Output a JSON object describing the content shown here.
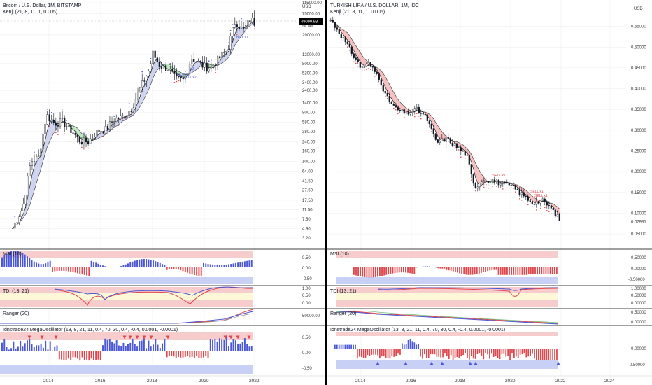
{
  "left": {
    "title": "Bitcoin / U.S. Dollar, 1M, BITSTAMP",
    "indicator": "Kenji (21, 8, 11, 1, 0.005)",
    "price_axis_labels": [
      "115000.00",
      "USD",
      "75000.00",
      "29000.00",
      "12000.00",
      "8000.00",
      "5200.00",
      "3400.00",
      "2400.00",
      "1400.00",
      "900.00",
      "580.00",
      "380.00",
      "240.00",
      "160.00",
      "100.00",
      "64.00",
      "41.50",
      "27.50",
      "17.50",
      "11.50",
      "7.50",
      "4.90",
      "3.20"
    ],
    "price_badge": "49099.68",
    "price_badge_sub": "9d 14h",
    "annotations": [
      "SELL x2",
      "BUY x2",
      "SELL x1",
      "BUY x1",
      "x2"
    ],
    "msi": {
      "label": "MSI (10)",
      "ticks": [
        "0.50",
        "0.00",
        "-0.50"
      ]
    },
    "tdi": {
      "label": "TDI (13, 21)",
      "ticks": [
        "1.00",
        "0.50",
        "0.00"
      ]
    },
    "ranger": {
      "label": "Ranger (20)",
      "ticks": [
        "50000.00"
      ]
    },
    "mega": {
      "label": "Idnstrade24 MegaOscillator (13, 8, 21, 11, 0.4, 70, 30, 0.4, -0.4, 0.0001, -0.0001)",
      "ticks": [
        "0.50",
        "0.00",
        "-0.50"
      ]
    },
    "x_ticks": [
      "2014",
      "2016",
      "2018",
      "2020",
      "2022"
    ]
  },
  "right": {
    "title": "TURKISH LIRA / U.S. DOLLAR, 1M, IDC",
    "indicator": "Kenji (21, 8, 11, 1, 0.005)",
    "price_axis_labels": [
      "USD",
      "0.55000",
      "0.50000",
      "0.45000",
      "0.40000",
      "0.35000",
      "0.30000",
      "0.25000",
      "0.20000",
      "0.15000",
      "0.10000",
      "0.07931",
      "0.05000"
    ],
    "annotations": [
      "SELL x1",
      "SELL x1",
      "SELL x1"
    ],
    "msi": {
      "label": "MSI (10)",
      "ticks": [
        "0.50000",
        "0.00000",
        "-0.50000"
      ]
    },
    "tdi": {
      "label": "TDI (13, 21)",
      "ticks": [
        "1.00000",
        "0.50000",
        "0.00000"
      ]
    },
    "ranger": {
      "label": "Ranger (20)",
      "ticks": [
        "0.50000",
        "0.00000"
      ]
    },
    "mega": {
      "label": "Idnstrade24 MegaOscillator (13, 8, 21, 11, 0.4, 70, 30, 0.4, -0.4, 0.0001, -0.0001)",
      "ticks": [
        "0.00000",
        "-0.50000"
      ]
    },
    "x_ticks": [
      "2014",
      "2016",
      "2018",
      "2020",
      "2022",
      "2024"
    ]
  },
  "colors": {
    "up": "#4a57d6",
    "down": "#e0474c",
    "bull_fill": "#b5e3b8",
    "bear_fill": "#f5b8b8",
    "cloud": "#c9cfee",
    "ob_band": "#f7cccc",
    "os_band": "#c9d0f5",
    "mid_band": "#fdf9d8",
    "grid": "#e6e6e6",
    "divider": "#000000",
    "badge": "#000000"
  },
  "chart_data": [
    {
      "type": "line",
      "title": "Bitcoin / U.S. Dollar, 1M, BITSTAMP",
      "scale": "log",
      "x": [
        2012.6,
        2013.0,
        2013.3,
        2013.6,
        2013.9,
        2014.2,
        2014.5,
        2014.9,
        2015.2,
        2015.5,
        2015.9,
        2016.2,
        2016.5,
        2016.9,
        2017.2,
        2017.5,
        2017.9,
        2018.0,
        2018.3,
        2018.6,
        2018.9,
        2019.2,
        2019.5,
        2019.9,
        2020.2,
        2020.5,
        2020.9,
        2021.2,
        2021.5,
        2021.8,
        2021.95
      ],
      "values": [
        5,
        13,
        100,
        120,
        800,
        550,
        600,
        380,
        250,
        240,
        400,
        420,
        650,
        750,
        1100,
        2500,
        6500,
        13000,
        7000,
        6500,
        4000,
        3800,
        10500,
        7500,
        6500,
        9200,
        15000,
        55000,
        35000,
        60000,
        49099.68
      ],
      "ylim": [
        3.2,
        115000
      ],
      "grid": true
    },
    {
      "type": "line",
      "title": "TURKISH LIRA / U.S. DOLLAR, 1M, IDC",
      "scale": "linear",
      "x": [
        2012.8,
        2013.2,
        2013.6,
        2014.0,
        2014.3,
        2014.7,
        2015.0,
        2015.4,
        2015.8,
        2016.2,
        2016.6,
        2017.0,
        2017.4,
        2017.8,
        2018.2,
        2018.5,
        2018.8,
        2019.2,
        2019.6,
        2020.0,
        2020.4,
        2020.8,
        2021.2,
        2021.5,
        2021.95
      ],
      "values": [
        0.565,
        0.53,
        0.49,
        0.45,
        0.46,
        0.43,
        0.38,
        0.35,
        0.34,
        0.35,
        0.33,
        0.27,
        0.28,
        0.26,
        0.24,
        0.16,
        0.18,
        0.18,
        0.17,
        0.165,
        0.145,
        0.125,
        0.13,
        0.115,
        0.07931
      ],
      "ylim": [
        0.04,
        0.6
      ],
      "grid": true
    }
  ]
}
